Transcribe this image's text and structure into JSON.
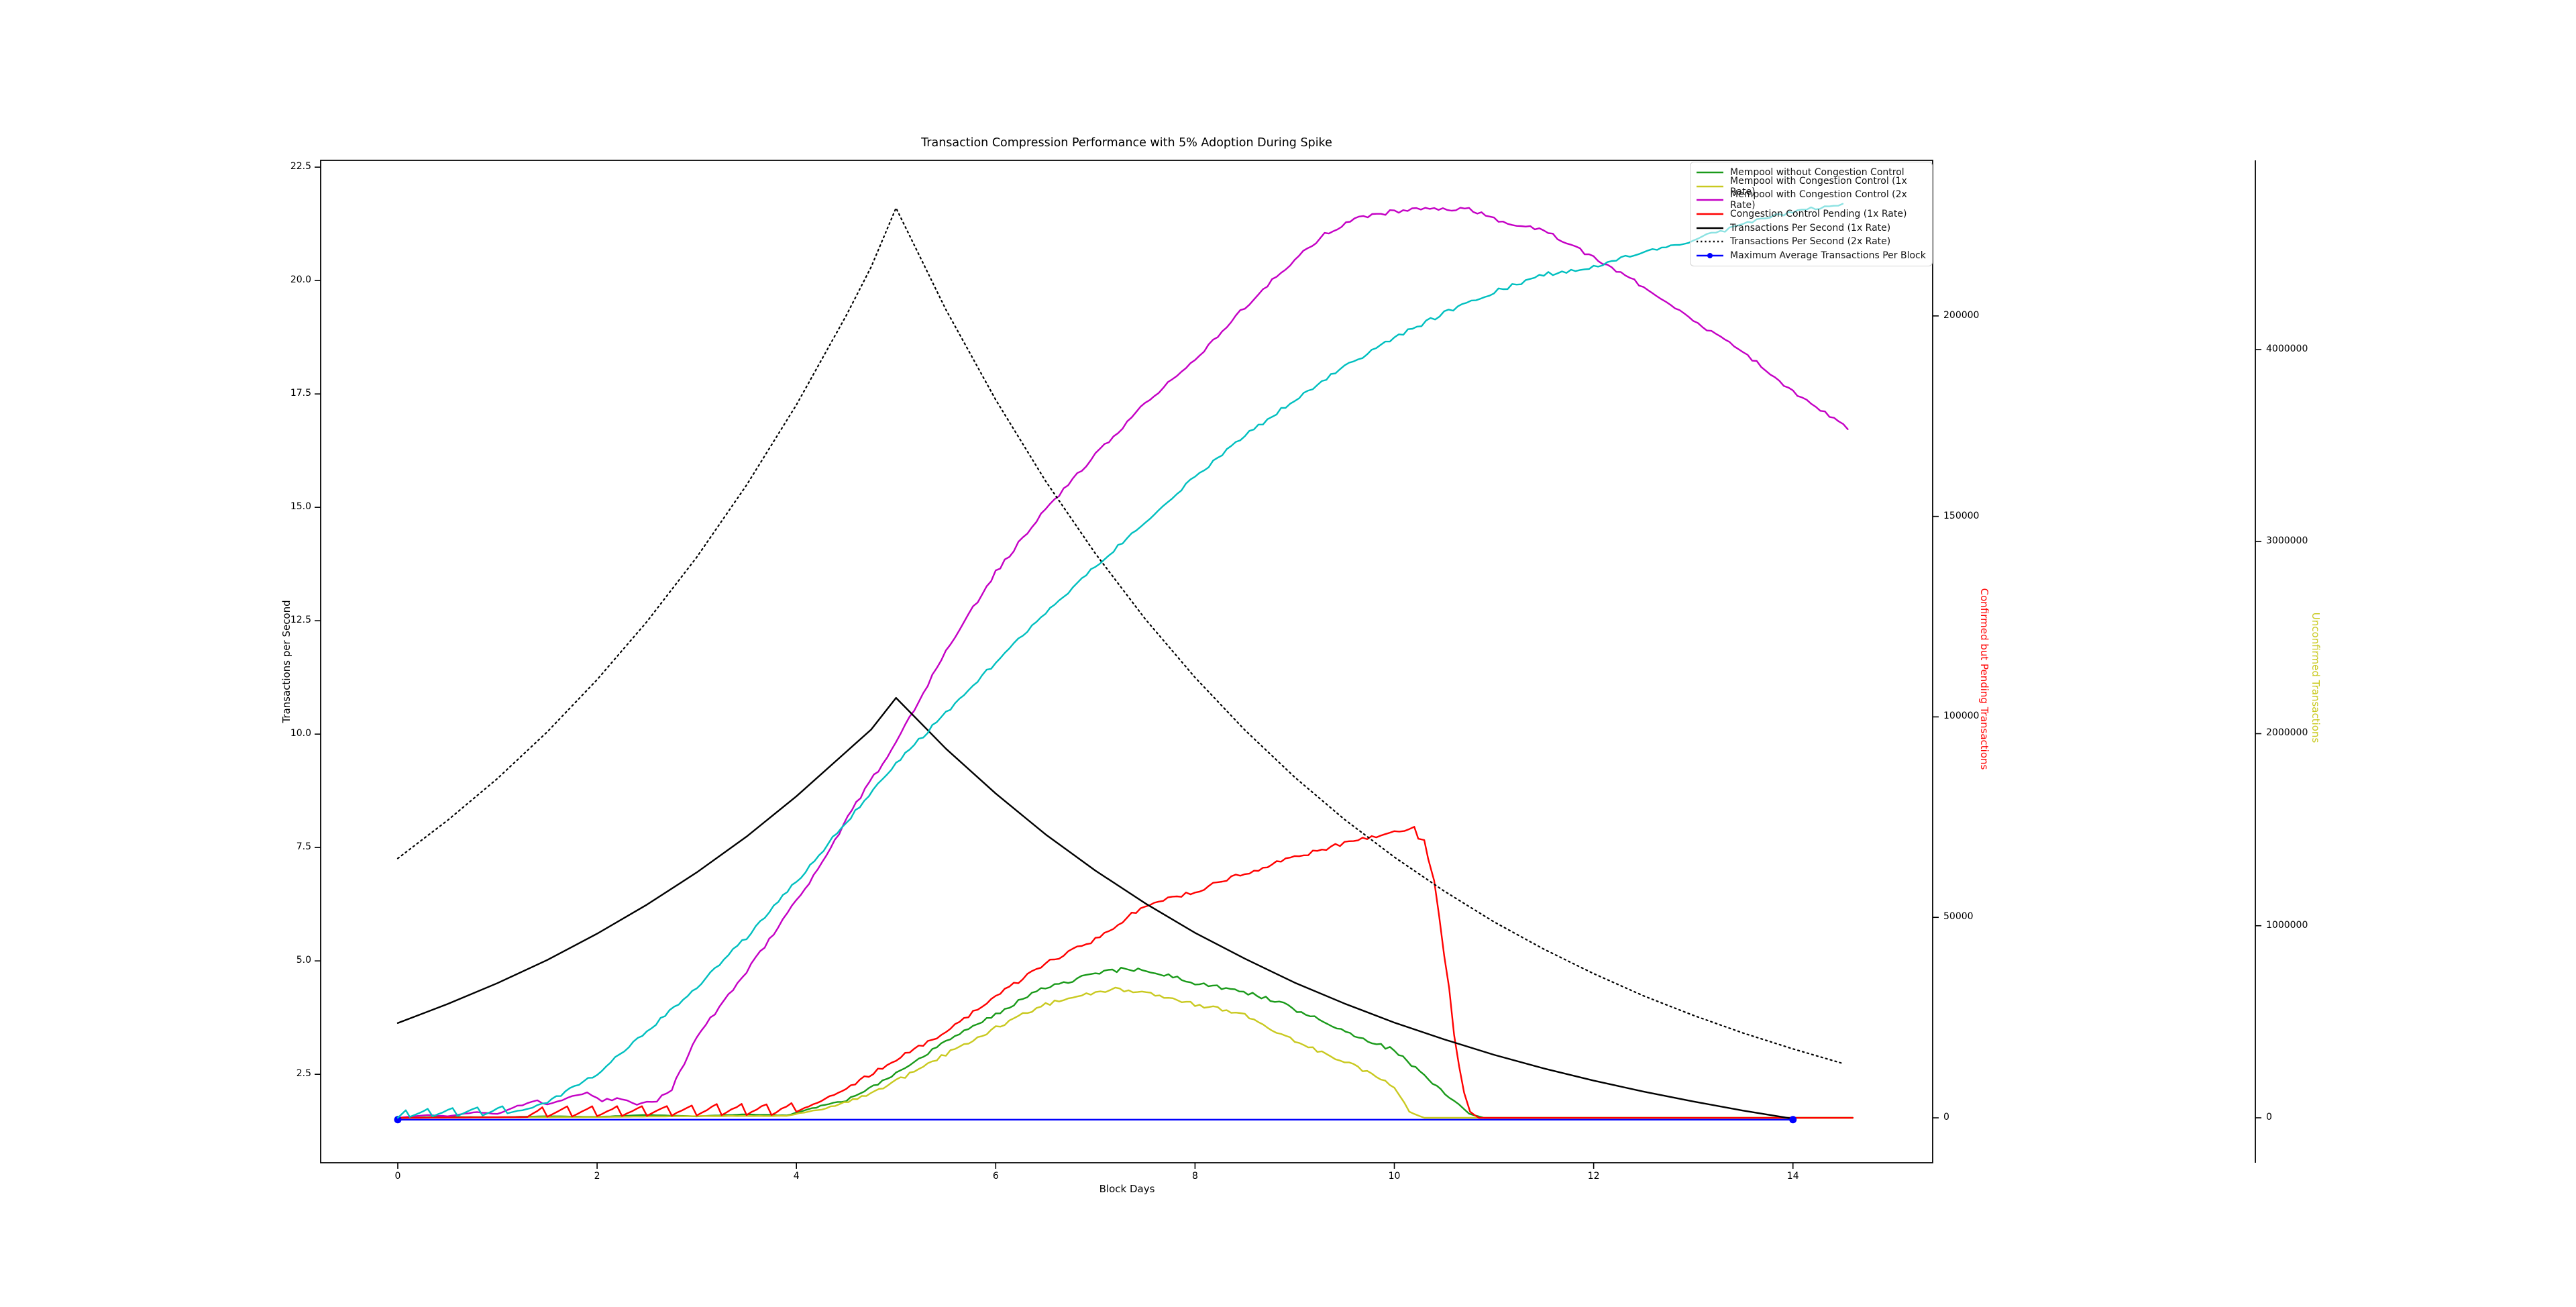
{
  "figure": {
    "title": "Transaction Compression Performance with 5% Adoption During Spike",
    "background": "#ffffff"
  },
  "axes": {
    "x": {
      "label": "Block Days",
      "tick_labels": [
        "0",
        "2",
        "4",
        "6",
        "8",
        "10",
        "12",
        "14"
      ],
      "tick_values": [
        0,
        2,
        4,
        6,
        8,
        10,
        12,
        14
      ],
      "lim": [
        -0.774,
        15.402
      ]
    },
    "left": {
      "label": "Transactions per Second",
      "label_color": "#000000",
      "tick_labels": [
        "2.5",
        "5.0",
        "7.5",
        "10.0",
        "12.5",
        "15.0",
        "17.5",
        "20.0",
        "22.5"
      ],
      "tick_values": [
        2.5,
        5.0,
        7.5,
        10.0,
        12.5,
        15.0,
        17.5,
        20.0,
        22.5
      ],
      "lim": [
        0.55,
        22.65
      ]
    },
    "right_pending": {
      "label": "Confirmed but Pending Transactions",
      "label_color": "#ff0000",
      "tick_labels": [
        "0",
        "50000",
        "100000",
        "150000",
        "200000"
      ],
      "tick_values": [
        0,
        50000,
        100000,
        150000,
        200000
      ],
      "lim": [
        -11200,
        238800
      ]
    },
    "right_unconfirmed": {
      "label": "Unconfirmed Transactions",
      "label_color": "#c9c920",
      "tick_labels": [
        "0",
        "1000000",
        "2000000",
        "3000000",
        "4000000"
      ],
      "tick_values": [
        0,
        1000000,
        2000000,
        3000000,
        4000000
      ],
      "lim": [
        -234000,
        4985000
      ]
    }
  },
  "legend": {
    "items": [
      {
        "label": "Mempool without Congestion Control",
        "series": "mempool_no_cc"
      },
      {
        "label": "Mempool with Congestion Control (1x Rate)",
        "series": "mempool_cc_1x"
      },
      {
        "label": "Mempool with Congestion Control (2x Rate)",
        "series": "mempool_cc_2x"
      },
      {
        "label": "Congestion Control Pending (1x Rate)",
        "series": "cc_pending_1x"
      },
      {
        "label": "Transactions Per Second (1x Rate)",
        "series": "tps_1x"
      },
      {
        "label": "Transactions Per Second (2x Rate)",
        "series": "tps_2x"
      },
      {
        "label": "Maximum Average Transactions Per Block",
        "series": "max_avg_tx_per_block"
      }
    ]
  },
  "chart_data": {
    "type": "line",
    "title": "Transaction Compression Performance with 5% Adoption During Spike",
    "xlabel": "Block Days",
    "ylabel_left": "Transactions per Second",
    "ylabel_right_pending": "Confirmed but Pending Transactions",
    "ylabel_right_unconfirmed": "Unconfirmed Transactions",
    "x_range_days": [
      0,
      14.6
    ],
    "grid": false,
    "legend_position": "upper right",
    "series": [
      {
        "key": "mempool_no_cc",
        "name": "Mempool without Congestion Control",
        "color": "#1a9a1a",
        "axis": "right_unconfirmed",
        "style": "solid",
        "noisy": true,
        "points": [
          [
            0,
            0
          ],
          [
            0.5,
            5000
          ],
          [
            1,
            3000
          ],
          [
            1.5,
            8000
          ],
          [
            2,
            5000
          ],
          [
            2.5,
            15000
          ],
          [
            3,
            8000
          ],
          [
            3.5,
            18000
          ],
          [
            3.9,
            12000
          ],
          [
            4.2,
            55000
          ],
          [
            4.5,
            90000
          ],
          [
            5,
            230000
          ],
          [
            5.5,
            395000
          ],
          [
            6,
            540000
          ],
          [
            6.5,
            680000
          ],
          [
            7,
            750000
          ],
          [
            7.3,
            775000
          ],
          [
            7.6,
            760000
          ],
          [
            8,
            700000
          ],
          [
            8.4,
            670000
          ],
          [
            8.8,
            610000
          ],
          [
            9.2,
            520000
          ],
          [
            9.6,
            430000
          ],
          [
            10,
            350000
          ],
          [
            10.3,
            220000
          ],
          [
            10.55,
            110000
          ],
          [
            10.75,
            20000
          ],
          [
            10.9,
            0
          ],
          [
            14.6,
            0
          ]
        ]
      },
      {
        "key": "mempool_cc_1x",
        "name": "Mempool with Congestion Control (1x Rate)",
        "color": "#c9c920",
        "axis": "right_unconfirmed",
        "style": "solid",
        "noisy": true,
        "points": [
          [
            0,
            0
          ],
          [
            1,
            2000
          ],
          [
            2,
            4000
          ],
          [
            3,
            9000
          ],
          [
            3.9,
            10000
          ],
          [
            4.3,
            50000
          ],
          [
            4.7,
            115000
          ],
          [
            5,
            190000
          ],
          [
            5.5,
            330000
          ],
          [
            6,
            470000
          ],
          [
            6.5,
            590000
          ],
          [
            7,
            650000
          ],
          [
            7.2,
            668000
          ],
          [
            7.6,
            640000
          ],
          [
            8,
            590000
          ],
          [
            8.5,
            538000
          ],
          [
            9,
            400000
          ],
          [
            9.5,
            295000
          ],
          [
            10,
            165000
          ],
          [
            10.15,
            30000
          ],
          [
            10.3,
            0
          ],
          [
            14.6,
            0
          ]
        ]
      },
      {
        "key": "mempool_cc_2x",
        "name": "Mempool with Congestion Control (2x Rate)",
        "color": "#c400c4",
        "axis": "right_unconfirmed",
        "style": "solid",
        "noisy": true,
        "points": [
          [
            0,
            0
          ],
          [
            0.3,
            15000
          ],
          [
            0.5,
            8000
          ],
          [
            0.8,
            30000
          ],
          [
            1,
            20000
          ],
          [
            1.2,
            60000
          ],
          [
            1.4,
            90000
          ],
          [
            1.5,
            70000
          ],
          [
            1.7,
            100000
          ],
          [
            1.9,
            130000
          ],
          [
            2.05,
            90000
          ],
          [
            2.2,
            100000
          ],
          [
            2.4,
            70000
          ],
          [
            2.6,
            90000
          ],
          [
            2.75,
            150000
          ],
          [
            3,
            420000
          ],
          [
            3.5,
            760000
          ],
          [
            4,
            1130000
          ],
          [
            4.3,
            1360000
          ],
          [
            4.6,
            1640000
          ],
          [
            5,
            1950000
          ],
          [
            5.5,
            2430000
          ],
          [
            6,
            2840000
          ],
          [
            6.5,
            3170000
          ],
          [
            7,
            3450000
          ],
          [
            7.5,
            3720000
          ],
          [
            8,
            3950000
          ],
          [
            8.5,
            4220000
          ],
          [
            9,
            4470000
          ],
          [
            9.3,
            4600000
          ],
          [
            9.6,
            4680000
          ],
          [
            10,
            4720000
          ],
          [
            10.4,
            4735000
          ],
          [
            10.75,
            4730000
          ],
          [
            11,
            4680000
          ],
          [
            11.5,
            4620000
          ],
          [
            12,
            4480000
          ],
          [
            12.5,
            4330000
          ],
          [
            13,
            4150000
          ],
          [
            13.5,
            3990000
          ],
          [
            14,
            3780000
          ],
          [
            14.55,
            3590000
          ]
        ]
      },
      {
        "key": "cc_pending_1x",
        "name": "Congestion Control Pending (1x Rate)",
        "color": "#ff0000",
        "axis": "right_pending",
        "style": "solid",
        "noisy": true,
        "points": [
          [
            0,
            0
          ],
          [
            1.3,
            200
          ],
          [
            1.45,
            2600
          ],
          [
            1.5,
            300
          ],
          [
            1.7,
            2700
          ],
          [
            1.75,
            350
          ],
          [
            1.95,
            2800
          ],
          [
            2,
            400
          ],
          [
            2.2,
            2900
          ],
          [
            2.25,
            450
          ],
          [
            2.45,
            3000
          ],
          [
            2.5,
            500
          ],
          [
            2.7,
            3100
          ],
          [
            2.75,
            550
          ],
          [
            2.95,
            3200
          ],
          [
            3,
            600
          ],
          [
            3.2,
            3300
          ],
          [
            3.25,
            650
          ],
          [
            3.45,
            3400
          ],
          [
            3.5,
            700
          ],
          [
            3.7,
            3500
          ],
          [
            3.75,
            750
          ],
          [
            3.95,
            3600
          ],
          [
            4,
            1500
          ],
          [
            4.25,
            4200
          ],
          [
            4.5,
            7500
          ],
          [
            5,
            14500
          ],
          [
            5.5,
            21500
          ],
          [
            6,
            30300
          ],
          [
            6.5,
            38500
          ],
          [
            7,
            44500
          ],
          [
            7.5,
            53000
          ],
          [
            8,
            56500
          ],
          [
            8.5,
            61000
          ],
          [
            9,
            65000
          ],
          [
            9.5,
            68500
          ],
          [
            10,
            71000
          ],
          [
            10.2,
            72500
          ],
          [
            10.24,
            69500
          ],
          [
            10.3,
            69000
          ],
          [
            10.34,
            65000
          ],
          [
            10.4,
            59500
          ],
          [
            10.45,
            50000
          ],
          [
            10.5,
            40000
          ],
          [
            10.55,
            32500
          ],
          [
            10.6,
            21000
          ],
          [
            10.65,
            13000
          ],
          [
            10.7,
            6000
          ],
          [
            10.76,
            1500
          ],
          [
            10.85,
            0
          ],
          [
            14.6,
            0
          ]
        ]
      },
      {
        "key": "tps_1x",
        "name": "Transactions Per Second (1x Rate)",
        "color": "#000000",
        "axis": "left",
        "style": "solid",
        "noisy": false,
        "points": [
          [
            0,
            3.63
          ],
          [
            0.5,
            4.05
          ],
          [
            1,
            4.51
          ],
          [
            1.5,
            5.02
          ],
          [
            2,
            5.6
          ],
          [
            2.5,
            6.24
          ],
          [
            3,
            6.95
          ],
          [
            3.5,
            7.74
          ],
          [
            4,
            8.63
          ],
          [
            4.5,
            9.61
          ],
          [
            4.75,
            10.1
          ],
          [
            5,
            10.8
          ],
          [
            5.5,
            9.68
          ],
          [
            6,
            8.69
          ],
          [
            6.5,
            7.79
          ],
          [
            7,
            6.99
          ],
          [
            7.5,
            6.27
          ],
          [
            8,
            5.62
          ],
          [
            8.5,
            5.05
          ],
          [
            9,
            4.52
          ],
          [
            9.5,
            4.06
          ],
          [
            10,
            3.64
          ],
          [
            10.5,
            3.27
          ],
          [
            11,
            2.93
          ],
          [
            11.5,
            2.63
          ],
          [
            12,
            2.36
          ],
          [
            12.5,
            2.12
          ],
          [
            13,
            1.9
          ],
          [
            13.5,
            1.7
          ],
          [
            14,
            1.52
          ]
        ]
      },
      {
        "key": "tps_2x",
        "name": "Transactions Per Second (2x Rate)",
        "color": "#000000",
        "axis": "left",
        "style": "dotted",
        "noisy": false,
        "points": [
          [
            0,
            7.26
          ],
          [
            0.5,
            8.1
          ],
          [
            1,
            9.02
          ],
          [
            1.5,
            10.05
          ],
          [
            2,
            11.2
          ],
          [
            2.5,
            12.48
          ],
          [
            3,
            13.9
          ],
          [
            3.5,
            15.49
          ],
          [
            4,
            17.26
          ],
          [
            4.5,
            19.23
          ],
          [
            4.75,
            20.3
          ],
          [
            5,
            21.6
          ],
          [
            5.5,
            19.36
          ],
          [
            6,
            17.37
          ],
          [
            6.5,
            15.58
          ],
          [
            7,
            13.98
          ],
          [
            7.5,
            12.54
          ],
          [
            8,
            11.25
          ],
          [
            8.5,
            10.09
          ],
          [
            9,
            9.05
          ],
          [
            9.5,
            8.12
          ],
          [
            10,
            7.29
          ],
          [
            10.5,
            6.54
          ],
          [
            11,
            5.86
          ],
          [
            11.5,
            5.26
          ],
          [
            12,
            4.72
          ],
          [
            12.5,
            4.23
          ],
          [
            13,
            3.8
          ],
          [
            13.5,
            3.41
          ],
          [
            14,
            3.06
          ],
          [
            14.5,
            2.74
          ]
        ]
      },
      {
        "key": "max_avg_tx_per_block",
        "name": "Maximum Average Transactions Per Block",
        "color": "#0000ff",
        "axis": "left",
        "style": "solid",
        "marker": true,
        "noisy": false,
        "points": [
          [
            0,
            1.5
          ],
          [
            14,
            1.5
          ]
        ]
      },
      {
        "key": "unlabeled_cyan",
        "name": "(unlabeled cyan line)",
        "color": "#00bfbf",
        "axis": "right_unconfirmed",
        "style": "solid",
        "noisy": true,
        "in_legend": false,
        "points": [
          [
            0,
            0
          ],
          [
            0.08,
            40000
          ],
          [
            0.12,
            5000
          ],
          [
            0.3,
            45000
          ],
          [
            0.35,
            8000
          ],
          [
            0.55,
            50000
          ],
          [
            0.6,
            10000
          ],
          [
            0.8,
            55000
          ],
          [
            0.85,
            12000
          ],
          [
            1.05,
            60000
          ],
          [
            1.1,
            25000
          ],
          [
            1.3,
            45000
          ],
          [
            1.5,
            80000
          ],
          [
            2,
            230000
          ],
          [
            2.5,
            450000
          ],
          [
            3,
            680000
          ],
          [
            3.5,
            940000
          ],
          [
            4,
            1230000
          ],
          [
            4.5,
            1540000
          ],
          [
            5,
            1845000
          ],
          [
            5.5,
            2110000
          ],
          [
            6,
            2370000
          ],
          [
            6.5,
            2630000
          ],
          [
            7,
            2870000
          ],
          [
            7.5,
            3100000
          ],
          [
            8,
            3340000
          ],
          [
            8.5,
            3550000
          ],
          [
            9,
            3740000
          ],
          [
            9.5,
            3910000
          ],
          [
            10,
            4060000
          ],
          [
            10.5,
            4190000
          ],
          [
            11,
            4300000
          ],
          [
            11.5,
            4390000
          ],
          [
            12,
            4430000
          ],
          [
            12.5,
            4510000
          ],
          [
            13,
            4570000
          ],
          [
            13.5,
            4650000
          ],
          [
            14,
            4720000
          ],
          [
            14.5,
            4760000
          ]
        ]
      }
    ]
  }
}
